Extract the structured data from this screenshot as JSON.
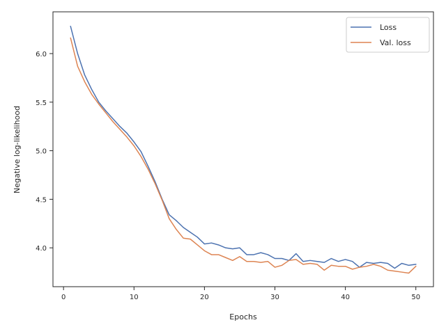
{
  "chart_data": {
    "type": "line",
    "xlabel": "Epochs",
    "ylabel": "Negative log-likelihood",
    "xlim": [
      -1.5,
      52.5
    ],
    "ylim": [
      3.6,
      6.43
    ],
    "xticks": [
      0,
      10,
      20,
      30,
      40,
      50
    ],
    "xtick_labels": [
      "0",
      "10",
      "20",
      "30",
      "40",
      "50"
    ],
    "yticks": [
      4.0,
      4.5,
      5.0,
      5.5,
      6.0
    ],
    "ytick_labels": [
      "4.0",
      "4.5",
      "5.0",
      "5.5",
      "6.0"
    ],
    "grid": false,
    "legend_position": "top-right",
    "x": [
      1,
      2,
      3,
      4,
      5,
      6,
      7,
      8,
      9,
      10,
      11,
      12,
      13,
      14,
      15,
      16,
      17,
      18,
      19,
      20,
      21,
      22,
      23,
      24,
      25,
      26,
      27,
      28,
      29,
      30,
      31,
      32,
      33,
      34,
      35,
      36,
      37,
      38,
      39,
      40,
      41,
      42,
      43,
      44,
      45,
      46,
      47,
      48,
      49,
      50
    ],
    "series": [
      {
        "name": "Loss",
        "color": "#4c72b0",
        "values": [
          6.28,
          6.0,
          5.78,
          5.63,
          5.5,
          5.41,
          5.33,
          5.25,
          5.18,
          5.09,
          4.99,
          4.84,
          4.68,
          4.5,
          4.34,
          4.28,
          4.21,
          4.16,
          4.11,
          4.04,
          4.05,
          4.03,
          4.0,
          3.99,
          4.0,
          3.93,
          3.93,
          3.95,
          3.93,
          3.89,
          3.89,
          3.87,
          3.94,
          3.86,
          3.87,
          3.86,
          3.85,
          3.89,
          3.86,
          3.88,
          3.86,
          3.8,
          3.85,
          3.84,
          3.85,
          3.84,
          3.79,
          3.84,
          3.82,
          3.83
        ]
      },
      {
        "name": "Val. loss",
        "color": "#dd8452",
        "values": [
          6.16,
          5.87,
          5.71,
          5.58,
          5.48,
          5.39,
          5.3,
          5.22,
          5.14,
          5.05,
          4.94,
          4.81,
          4.66,
          4.49,
          4.3,
          4.19,
          4.1,
          4.09,
          4.03,
          3.97,
          3.93,
          3.93,
          3.9,
          3.87,
          3.91,
          3.86,
          3.86,
          3.85,
          3.86,
          3.8,
          3.82,
          3.87,
          3.88,
          3.83,
          3.84,
          3.83,
          3.77,
          3.82,
          3.81,
          3.81,
          3.78,
          3.8,
          3.81,
          3.83,
          3.81,
          3.77,
          3.76,
          3.75,
          3.74,
          3.81
        ]
      }
    ]
  }
}
